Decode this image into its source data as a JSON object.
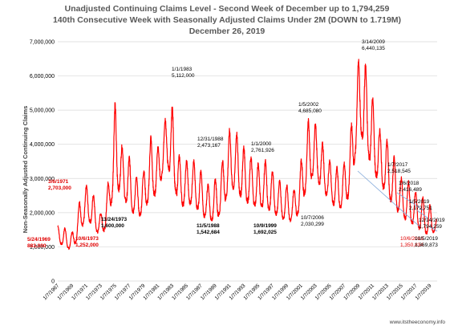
{
  "colors": {
    "line": "#ff0000",
    "grid": "#d9d9d9",
    "text": "#000000",
    "red_text": "#e00000",
    "arrow": "#7fa7d9",
    "title": "#595959"
  },
  "source": "www.itstheeconomy.info",
  "chart_data": {
    "type": "line",
    "title": [
      "Unadjusted Continuing Claims Level - Second Week of December up to 1,794,259",
      "140th Consecutive Week with Seasonally Adjusted Claims Under 2M  (DOWN to 1.719M)",
      "December 26, 2019"
    ],
    "ylabel": "Non-Seasonally Adjusted Continuing Claims",
    "xlabel": "",
    "ylim": [
      0,
      7000000
    ],
    "xlim": [
      1967.0,
      2020.0
    ],
    "yticks": [
      {
        "value": 0,
        "label": "0"
      },
      {
        "value": 1000000,
        "label": "1,000,000"
      },
      {
        "value": 2000000,
        "label": "2,000,000"
      },
      {
        "value": 3000000,
        "label": "3,000,000"
      },
      {
        "value": 4000000,
        "label": "4,000,000"
      },
      {
        "value": 5000000,
        "label": "5,000,000"
      },
      {
        "value": 6000000,
        "label": "6,000,000"
      },
      {
        "value": 7000000,
        "label": "7,000,000"
      }
    ],
    "xticks": [
      {
        "x": 1967.0,
        "label": "1/7/1967"
      },
      {
        "x": 1969.0,
        "label": "1/7/1969"
      },
      {
        "x": 1971.0,
        "label": "1/7/1971"
      },
      {
        "x": 1973.0,
        "label": "1/7/1973"
      },
      {
        "x": 1975.0,
        "label": "1/7/1975"
      },
      {
        "x": 1977.0,
        "label": "1/7/1977"
      },
      {
        "x": 1979.0,
        "label": "1/7/1979"
      },
      {
        "x": 1981.0,
        "label": "1/7/1981"
      },
      {
        "x": 1983.0,
        "label": "1/7/1983"
      },
      {
        "x": 1985.0,
        "label": "1/7/1985"
      },
      {
        "x": 1987.0,
        "label": "1/7/1987"
      },
      {
        "x": 1989.0,
        "label": "1/7/1989"
      },
      {
        "x": 1991.0,
        "label": "1/7/1991"
      },
      {
        "x": 1993.0,
        "label": "1/7/1993"
      },
      {
        "x": 1995.0,
        "label": "1/7/1995"
      },
      {
        "x": 1997.0,
        "label": "1/7/1997"
      },
      {
        "x": 1999.0,
        "label": "1/7/1999"
      },
      {
        "x": 2001.0,
        "label": "1/7/2001"
      },
      {
        "x": 2003.0,
        "label": "1/7/2003"
      },
      {
        "x": 2005.0,
        "label": "1/7/2005"
      },
      {
        "x": 2007.0,
        "label": "1/7/2007"
      },
      {
        "x": 2009.0,
        "label": "1/7/2009"
      },
      {
        "x": 2011.0,
        "label": "1/7/2011"
      },
      {
        "x": 2013.0,
        "label": "1/7/2013"
      },
      {
        "x": 2015.0,
        "label": "1/7/2015"
      },
      {
        "x": 2017.0,
        "label": "1/7/2017"
      },
      {
        "x": 2019.0,
        "label": "1/7/2019"
      }
    ],
    "series": [
      {
        "envelope": [
          {
            "x": 1967.0,
            "low": 1150000,
            "high": 1620000
          },
          {
            "x": 1968.0,
            "low": 1020000,
            "high": 1550000
          },
          {
            "x": 1969.0,
            "low": 900000,
            "high": 1400000
          },
          {
            "x": 1970.0,
            "low": 1400000,
            "high": 2300000
          },
          {
            "x": 1971.0,
            "low": 1900000,
            "high": 2800000
          },
          {
            "x": 1972.0,
            "low": 1600000,
            "high": 2500000
          },
          {
            "x": 1973.0,
            "low": 1300000,
            "high": 1950000
          },
          {
            "x": 1974.0,
            "low": 1700000,
            "high": 2800000
          },
          {
            "x": 1975.0,
            "low": 2950000,
            "high": 5200000
          },
          {
            "x": 1976.0,
            "low": 2500000,
            "high": 3900000
          },
          {
            "x": 1977.0,
            "low": 2200000,
            "high": 3600000
          },
          {
            "x": 1978.0,
            "low": 1900000,
            "high": 3000000
          },
          {
            "x": 1979.0,
            "low": 2000000,
            "high": 3200000
          },
          {
            "x": 1980.0,
            "low": 2600000,
            "high": 4200000
          },
          {
            "x": 1981.0,
            "low": 2500000,
            "high": 3900000
          },
          {
            "x": 1982.0,
            "low": 3600000,
            "high": 4700000
          },
          {
            "x": 1983.0,
            "low": 3000000,
            "high": 5110000
          },
          {
            "x": 1984.0,
            "low": 2200000,
            "high": 3600000
          },
          {
            "x": 1985.0,
            "low": 2300000,
            "high": 3500000
          },
          {
            "x": 1986.0,
            "low": 2300000,
            "high": 3500000
          },
          {
            "x": 1987.0,
            "low": 2000000,
            "high": 3200000
          },
          {
            "x": 1988.0,
            "low": 1800000,
            "high": 2800000
          },
          {
            "x": 1989.0,
            "low": 1800000,
            "high": 2950000
          },
          {
            "x": 1990.0,
            "low": 2100000,
            "high": 3500000
          },
          {
            "x": 1991.0,
            "low": 2800000,
            "high": 4400000
          },
          {
            "x": 1992.0,
            "low": 2700000,
            "high": 4300000
          },
          {
            "x": 1993.0,
            "low": 2400000,
            "high": 3900000
          },
          {
            "x": 1994.0,
            "low": 2300000,
            "high": 3600000
          },
          {
            "x": 1995.0,
            "low": 2200000,
            "high": 3400000
          },
          {
            "x": 1996.0,
            "low": 2200000,
            "high": 3500000
          },
          {
            "x": 1997.0,
            "low": 2050000,
            "high": 3200000
          },
          {
            "x": 1998.0,
            "low": 1900000,
            "high": 2900000
          },
          {
            "x": 1999.0,
            "low": 1800000,
            "high": 2800000
          },
          {
            "x": 2000.0,
            "low": 1750000,
            "high": 2650000
          },
          {
            "x": 2001.0,
            "low": 2200000,
            "high": 3500000
          },
          {
            "x": 2002.0,
            "low": 3000000,
            "high": 4700000
          },
          {
            "x": 2003.0,
            "low": 3100000,
            "high": 4600000
          },
          {
            "x": 2004.0,
            "low": 2700000,
            "high": 4000000
          },
          {
            "x": 2005.0,
            "low": 2400000,
            "high": 3500000
          },
          {
            "x": 2006.0,
            "low": 2150000,
            "high": 3300000
          },
          {
            "x": 2007.0,
            "low": 2200000,
            "high": 3400000
          },
          {
            "x": 2008.0,
            "low": 2700000,
            "high": 4500000
          },
          {
            "x": 2009.0,
            "low": 4500000,
            "high": 6440000
          },
          {
            "x": 2010.0,
            "low": 4000000,
            "high": 6300000
          },
          {
            "x": 2011.0,
            "low": 3300000,
            "high": 5300000
          },
          {
            "x": 2012.0,
            "low": 2900000,
            "high": 4400000
          },
          {
            "x": 2013.0,
            "low": 2600000,
            "high": 4100000
          },
          {
            "x": 2014.0,
            "low": 2200000,
            "high": 3600000
          },
          {
            "x": 2015.0,
            "low": 1950000,
            "high": 3000000
          },
          {
            "x": 2016.0,
            "low": 1750000,
            "high": 2900000
          },
          {
            "x": 2017.0,
            "low": 1650000,
            "high": 2600000
          },
          {
            "x": 2018.0,
            "low": 1450000,
            "high": 2450000
          },
          {
            "x": 2019.0,
            "low": 1380000,
            "high": 2200000
          },
          {
            "x": 2019.96,
            "low": 1500000,
            "high": 1800000
          }
        ]
      }
    ],
    "annotations": [
      {
        "date": "3/6/1971",
        "value": "2,703,000",
        "red": true,
        "bold": true
      },
      {
        "date": "5/24/1969",
        "value": "883,000",
        "red": true,
        "bold": true
      },
      {
        "date": "10/6/1973",
        "value": "1,252,000",
        "red": true,
        "bold": true
      },
      {
        "date": "11/24/1973",
        "value": "1,600,000",
        "red": false,
        "bold": true
      },
      {
        "date": "1/1/1983",
        "value": "5,112,000",
        "red": false,
        "bold": false
      },
      {
        "date": "12/31/1988",
        "value": "2,473,167",
        "red": false,
        "bold": false
      },
      {
        "date": "11/5/1988",
        "value": "1,542,684",
        "red": false,
        "bold": true
      },
      {
        "date": "1/1/2000",
        "value": "2,761,926",
        "red": false,
        "bold": false
      },
      {
        "date": "10/9/1999",
        "value": "1,692,025",
        "red": false,
        "bold": true
      },
      {
        "date": "1/5/2002",
        "value": "4,685,080",
        "red": false,
        "bold": false
      },
      {
        "date": "10/7/2006",
        "value": "2,030,299",
        "red": false,
        "bold": false
      },
      {
        "date": "3/14/2009",
        "value": "6,440,135",
        "red": false,
        "bold": false
      },
      {
        "date": "1/7/2017",
        "value": "2,518,545",
        "red": false,
        "bold": false
      },
      {
        "date": "1/6/2018",
        "value": "2,416,489",
        "red": false,
        "bold": false
      },
      {
        "date": "1/5/2019",
        "value": "2,172,751",
        "red": false,
        "bold": false
      },
      {
        "date": "12/14/2019",
        "value": "1,794,259",
        "red": false,
        "bold": false
      },
      {
        "date": "10/6/2018",
        "value": "1,350,834",
        "red": true,
        "bold": false
      },
      {
        "date": "10/5/2019",
        "value": "1,369,873",
        "red": false,
        "bold": false
      }
    ],
    "grid": "horizontal",
    "legend": "none"
  }
}
